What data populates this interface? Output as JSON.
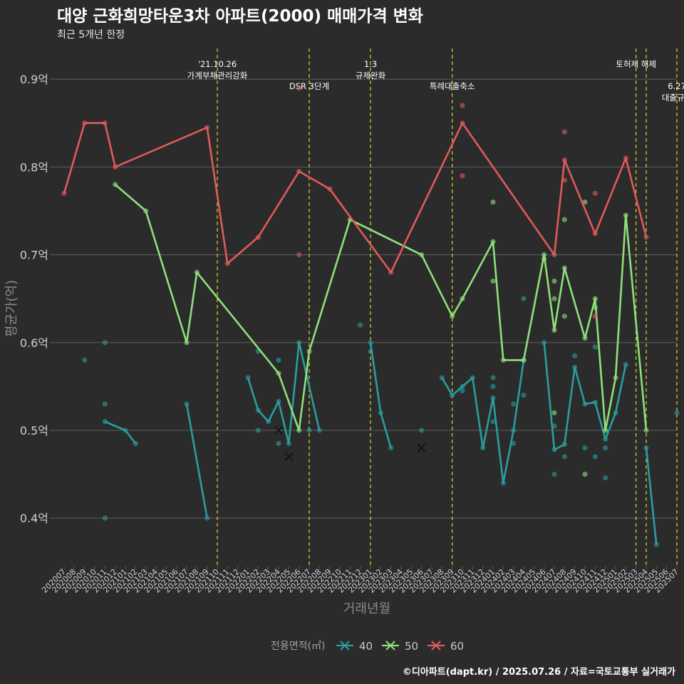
{
  "chart_data": {
    "type": "line",
    "title": "대양 근화희망타운3차 아파트(2000) 매매가격 변화",
    "subtitle": "최근 5개년 한정",
    "xlabel": "거래년월",
    "ylabel": "평균가(억)",
    "legend_title": "전용면적(㎡)",
    "legend_position": "bottom",
    "caption": "©디아파트(dapt.kr) / 2025.07.26 / 자료=국토교통부 실거래가",
    "ylim": [
      0.345,
      0.935
    ],
    "grid": true,
    "categories": [
      "202007",
      "202008",
      "202009",
      "202010",
      "202011",
      "202012",
      "202101",
      "202102",
      "202103",
      "202104",
      "202105",
      "202106",
      "202107",
      "202108",
      "202109",
      "202110",
      "202111",
      "202112",
      "202201",
      "202202",
      "202203",
      "202204",
      "202205",
      "202206",
      "202207",
      "202208",
      "202209",
      "202210",
      "202211",
      "202212",
      "202301",
      "202302",
      "202303",
      "202304",
      "202305",
      "202306",
      "202307",
      "202308",
      "202309",
      "202310",
      "202311",
      "202312",
      "202401",
      "202402",
      "202403",
      "202404",
      "202405",
      "202406",
      "202407",
      "202408",
      "202409",
      "202410",
      "202411",
      "202412",
      "202501",
      "202502",
      "202503",
      "202504",
      "202505",
      "202506",
      "202507"
    ],
    "y_ticks": [
      {
        "value": 0.9,
        "label": "0.9억"
      },
      {
        "value": 0.8,
        "label": "0.8억"
      },
      {
        "value": 0.7,
        "label": "0.7억"
      },
      {
        "value": 0.6,
        "label": "0.6억"
      },
      {
        "value": 0.5,
        "label": "0.5억"
      },
      {
        "value": 0.4,
        "label": "0.4억"
      }
    ],
    "series": [
      {
        "name": "40",
        "color": "#2a9d9f",
        "line": [
          [
            4,
            0.51
          ],
          [
            6,
            0.5
          ],
          [
            7,
            0.485
          ],
          null,
          [
            12,
            0.53
          ],
          [
            14,
            0.4
          ],
          null,
          [
            18,
            0.56
          ],
          [
            19,
            0.523
          ],
          [
            20,
            0.51
          ],
          [
            21,
            0.533
          ],
          [
            22,
            0.485
          ],
          [
            23,
            0.6
          ],
          [
            25,
            0.5
          ],
          null,
          [
            30,
            0.6
          ],
          [
            31,
            0.52
          ],
          [
            32,
            0.48
          ],
          null,
          [
            37,
            0.56
          ],
          [
            38,
            0.54
          ],
          [
            39,
            0.55
          ],
          [
            40,
            0.56
          ],
          [
            41,
            0.48
          ],
          [
            42,
            0.537
          ],
          [
            43,
            0.44
          ],
          [
            44,
            0.5
          ],
          [
            45,
            0.58
          ],
          null,
          [
            47,
            0.6
          ],
          [
            48,
            0.478
          ],
          [
            49,
            0.484
          ],
          [
            50,
            0.572
          ],
          [
            51,
            0.53
          ],
          [
            52,
            0.532
          ],
          [
            53,
            0.49
          ],
          [
            54,
            0.52
          ],
          [
            55,
            0.575
          ],
          null,
          [
            57,
            0.48
          ],
          [
            58,
            0.37
          ]
        ],
        "points": [
          [
            2,
            0.58
          ],
          [
            4,
            0.6
          ],
          [
            4,
            0.53
          ],
          [
            4,
            0.4
          ],
          [
            19,
            0.59
          ],
          [
            19,
            0.5
          ],
          [
            21,
            0.58
          ],
          [
            21,
            0.485
          ],
          [
            24,
            0.5
          ],
          [
            29,
            0.62
          ],
          [
            30,
            0.59
          ],
          [
            35,
            0.5
          ],
          [
            39,
            0.545
          ],
          [
            42,
            0.55
          ],
          [
            42,
            0.56
          ],
          [
            42,
            0.51
          ],
          [
            44,
            0.53
          ],
          [
            44,
            0.485
          ],
          [
            45,
            0.65
          ],
          [
            45,
            0.54
          ],
          [
            48,
            0.45
          ],
          [
            48,
            0.505
          ],
          [
            49,
            0.47
          ],
          [
            50,
            0.585
          ],
          [
            51,
            0.48
          ],
          [
            52,
            0.47
          ],
          [
            52,
            0.595
          ],
          [
            53,
            0.48
          ],
          [
            53,
            0.446
          ],
          [
            60,
            0.52
          ]
        ],
        "crosses": [
          [
            21,
            0.5
          ],
          [
            22,
            0.47
          ],
          [
            35,
            0.48
          ]
        ]
      },
      {
        "name": "50",
        "color": "#8fe07a",
        "line": [
          [
            5,
            0.78
          ],
          [
            8,
            0.75
          ],
          [
            12,
            0.6
          ],
          [
            13,
            0.68
          ],
          [
            21,
            0.565
          ],
          [
            23,
            0.5
          ],
          [
            24,
            0.59
          ],
          [
            28,
            0.74
          ],
          [
            35,
            0.7
          ],
          [
            38,
            0.63
          ],
          [
            39,
            0.65
          ],
          [
            42,
            0.715
          ],
          [
            43,
            0.58
          ],
          [
            45,
            0.58
          ],
          [
            47,
            0.7
          ],
          [
            48,
            0.614
          ],
          [
            49,
            0.685
          ],
          [
            51,
            0.605
          ],
          [
            52,
            0.65
          ],
          [
            53,
            0.5
          ],
          [
            54,
            0.56
          ],
          [
            55,
            0.745
          ],
          [
            57,
            0.5
          ]
        ],
        "points": [
          [
            42,
            0.76
          ],
          [
            42,
            0.67
          ],
          [
            47,
            0.695
          ],
          [
            48,
            0.67
          ],
          [
            48,
            0.65
          ],
          [
            48,
            0.52
          ],
          [
            49,
            0.74
          ],
          [
            49,
            0.63
          ],
          [
            51,
            0.76
          ],
          [
            51,
            0.45
          ],
          [
            52,
            0.64
          ]
        ],
        "crosses": []
      },
      {
        "name": "60",
        "color": "#e05a5a",
        "line": [
          [
            0,
            0.77
          ],
          [
            2,
            0.85
          ],
          [
            4,
            0.85
          ],
          [
            5,
            0.8
          ],
          [
            14,
            0.845
          ],
          [
            16,
            0.69
          ],
          [
            19,
            0.72
          ],
          [
            23,
            0.795
          ],
          [
            26,
            0.775
          ],
          [
            32,
            0.68
          ],
          [
            39,
            0.85
          ],
          [
            48,
            0.7
          ],
          [
            49,
            0.808
          ],
          [
            52,
            0.724
          ],
          [
            55,
            0.81
          ],
          [
            57,
            0.72
          ]
        ],
        "points": [
          [
            23,
            0.7
          ],
          [
            23,
            0.89
          ],
          [
            39,
            0.87
          ],
          [
            39,
            0.79
          ],
          [
            49,
            0.84
          ],
          [
            49,
            0.785
          ],
          [
            52,
            0.77
          ],
          [
            52,
            0.63
          ]
        ],
        "crosses": []
      }
    ],
    "annotations": [
      {
        "x": 15.0,
        "lines": [
          "'21.10.26",
          "가계부채관리강화"
        ],
        "row": 0
      },
      {
        "x": 24.0,
        "lines": [
          "DSR 3단계"
        ],
        "row": 1
      },
      {
        "x": 30.0,
        "lines": [
          "1.3",
          "규제완화"
        ],
        "row": 0
      },
      {
        "x": 38.0,
        "lines": [
          "특례대출축소"
        ],
        "row": 1
      },
      {
        "x": 56.0,
        "lines": [
          "토허제 해제"
        ],
        "row": 0
      },
      {
        "x": 57.0,
        "lines": [],
        "row": 0
      },
      {
        "x": 60.0,
        "lines": [
          "6.27",
          "대출규제"
        ],
        "row": 1
      }
    ]
  }
}
